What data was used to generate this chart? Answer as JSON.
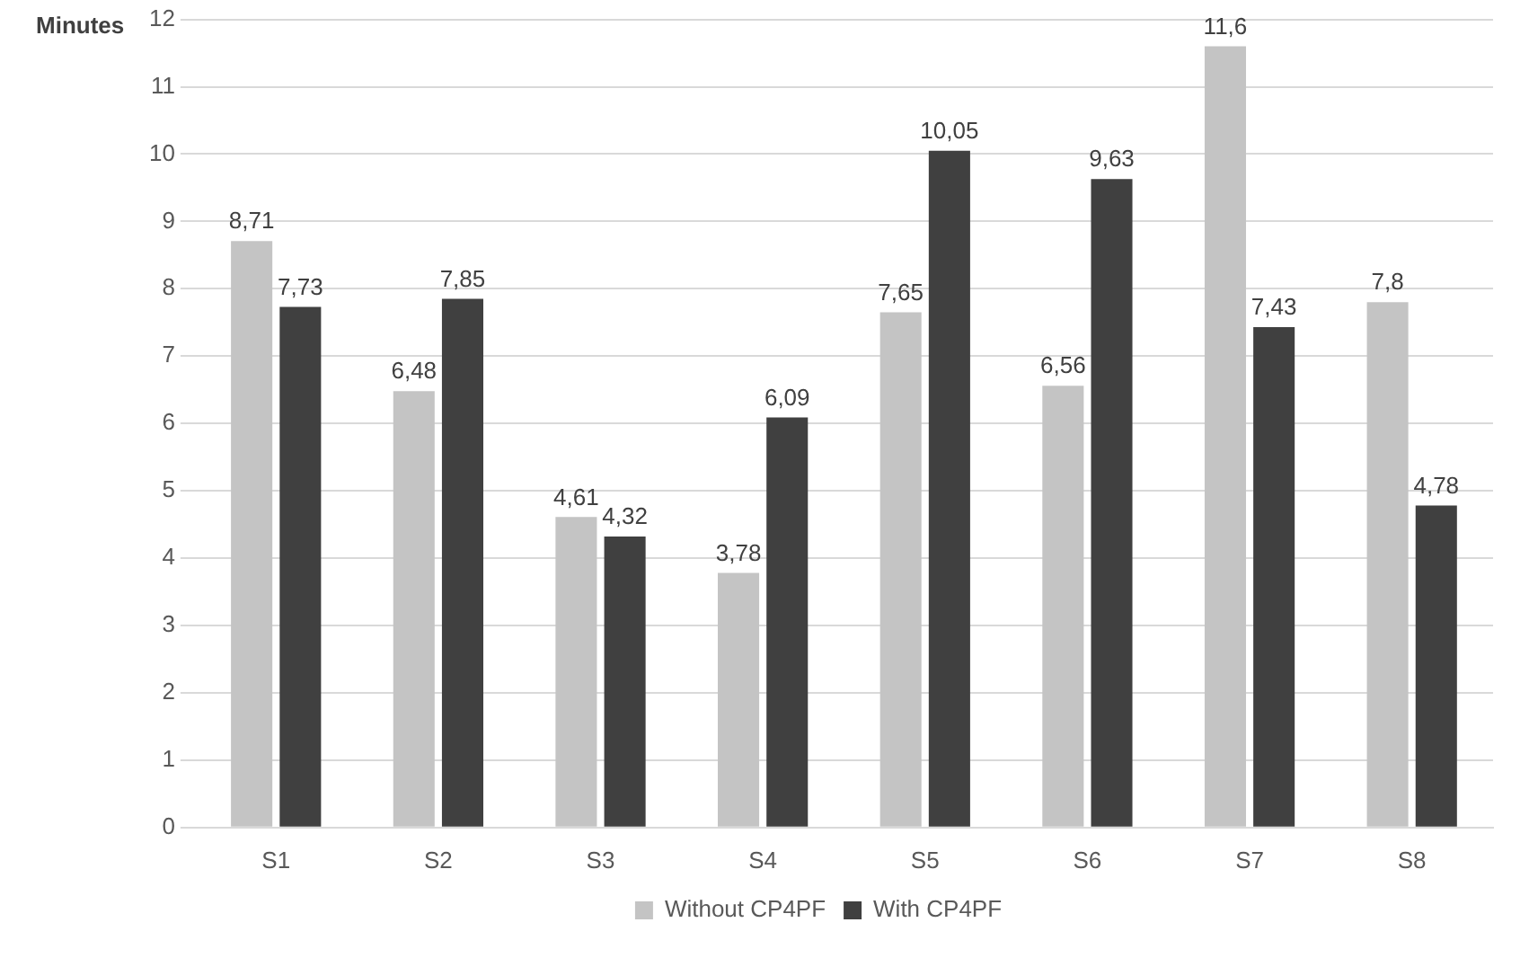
{
  "chart_data": {
    "type": "bar",
    "ylabel": "Minutes",
    "categories": [
      "S1",
      "S2",
      "S3",
      "S4",
      "S5",
      "S6",
      "S7",
      "S8"
    ],
    "series": [
      {
        "name": "Without CP4PF",
        "color": "#c4c4c4",
        "values": [
          8.71,
          6.48,
          4.61,
          3.78,
          7.65,
          6.56,
          11.6,
          7.8
        ],
        "value_labels": [
          "8,71",
          "6,48",
          "4,61",
          "3,78",
          "7,65",
          "6,56",
          "11,6",
          "7,8"
        ]
      },
      {
        "name": "With CP4PF",
        "color": "#404040",
        "values": [
          7.73,
          7.85,
          4.32,
          6.09,
          10.05,
          9.63,
          7.43,
          4.78
        ],
        "value_labels": [
          "7,73",
          "7,85",
          "4,32",
          "6,09",
          "10,05",
          "9,63",
          "7,43",
          "4,78"
        ]
      }
    ],
    "ylim": [
      0,
      12
    ],
    "yticks": [
      0,
      1,
      2,
      3,
      4,
      5,
      6,
      7,
      8,
      9,
      10,
      11,
      12
    ],
    "grid": "y",
    "legend": "bottom"
  }
}
